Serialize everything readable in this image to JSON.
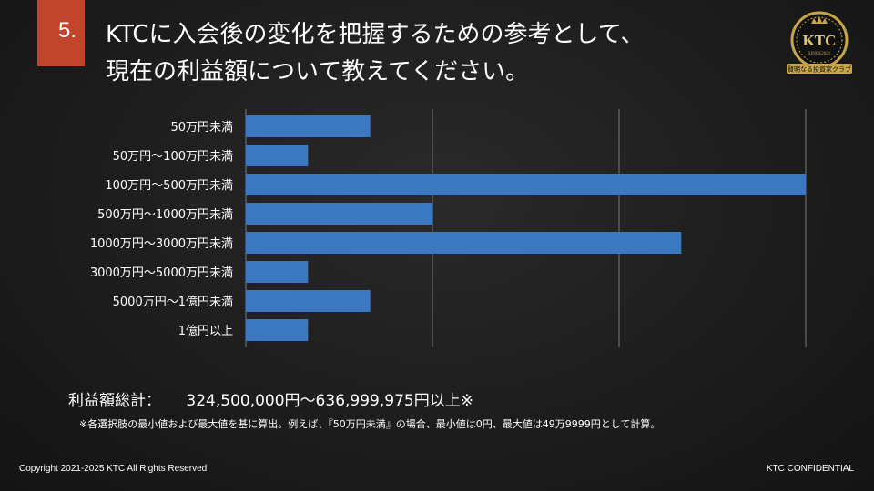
{
  "header": {
    "number": "5.",
    "title_line1": "KTCに入会後の変化を把握するための参考として、",
    "title_line2": "現在の利益額について教えてください。"
  },
  "logo": {
    "text": "KTC",
    "since": "SINCE2021",
    "banner": "賢明なる投資家クラブ",
    "colors": {
      "gold": "#c9a54a",
      "dark": "#111111"
    }
  },
  "chart_data": {
    "type": "bar",
    "orientation": "horizontal",
    "categories": [
      "50万円未満",
      "50万円〜100万円未満",
      "100万円〜500万円未満",
      "500万円〜1000万円未満",
      "1000万円〜3000万円未満",
      "3000万円〜5000万円未満",
      "5000万円〜1億円未満",
      "1億円以上"
    ],
    "values": [
      2,
      1,
      9,
      3,
      7,
      1,
      2,
      1
    ],
    "xlim": [
      0,
      9
    ],
    "gridlines": [
      3,
      6,
      9
    ],
    "bar_color": "#3a78c2",
    "grid": true
  },
  "summary": {
    "label": "利益額総計：",
    "value": "324,500,000円〜636,999,975円以上※",
    "note": "※各選択肢の最小値および最大値を基に算出。例えば、『50万円未満』の場合、最小値は0円、最大値は49万9999円として計算。"
  },
  "footer": {
    "copyright": "Copyright 2021-2025 KTC All Rights Reserved",
    "confidential": "KTC CONFIDENTIAL"
  }
}
